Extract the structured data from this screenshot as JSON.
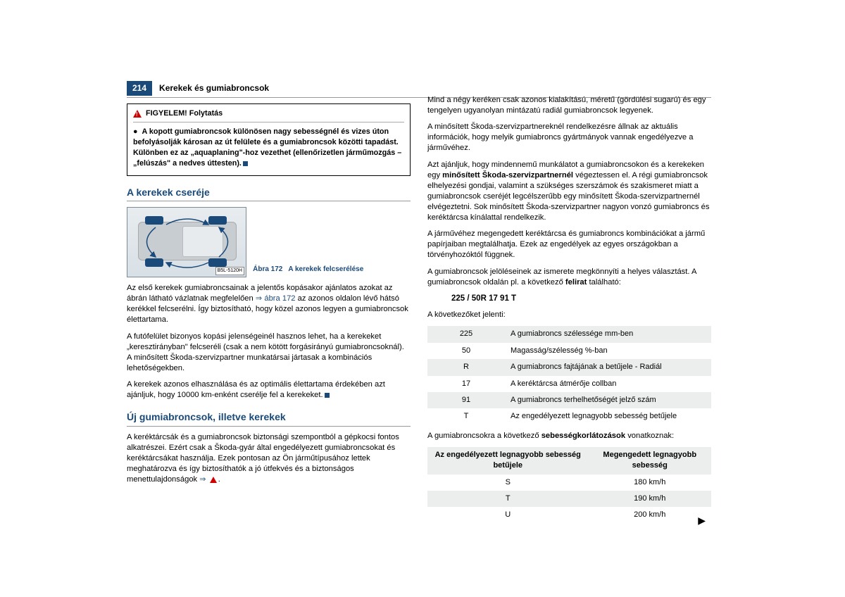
{
  "page_number": "214",
  "chapter": "Kerekek és gumiabroncsok",
  "warning": {
    "title": "FIGYELEM! Folytatás",
    "body": "A kopott gumiabroncsok különösen nagy sebességnél és vizes úton befolyásolják károsan az út felülete és a gumiabroncsok közötti tapadást. Különben ez az „aquaplaning\"-hoz vezethet (ellenőrizetlen járműmozgás – „felúszás\" a nedves úttesten)."
  },
  "section1": {
    "title": "A kerekek cseréje",
    "fig_label": "B5L-5120H",
    "fig_caption_prefix": "Ábra 172",
    "fig_caption": "A kerekek felcserélése",
    "p1a": "Az első kerekek gumiabroncsainak a jelentős kopásakor ajánlatos azokat az ábrán látható vázlatnak megfelelően ",
    "p1b": "ábra 172",
    "p1c": " az azonos oldalon lévő hátsó kerékkel felcserélni. Így biztosítható, hogy közel azonos legyen a gumiabroncsok élettartama.",
    "p2": "A futófelület bizonyos kopási jelenségeinél hasznos lehet, ha a kerekeket „keresztirányban\" felcseréli (csak a nem kötött forgásirányú gumiabroncsoknál). A minősített Škoda-szervizpartner munkatársai jártasak a kombinációs lehetőségekben.",
    "p3": "A kerekek azonos elhasználása és az optimális élettartama érdekében azt ajánljuk, hogy 10000 km-enként cserélje fel a kerekeket."
  },
  "section2": {
    "title": "Új gumiabroncsok, illetve kerekek",
    "p1": "A keréktárcsák és a gumiabroncsok biztonsági szempontból a gépkocsi fontos alkatrészei. Ezért csak a Škoda-gyár által engedélyezett gumiabroncsokat és keréktárcsákat használja. Ezek pontosan az Ön járműtípusához lettek meghatározva és így biztosíthatók a jó útfekvés és a biztonságos menettulajdonságok "
  },
  "right": {
    "p1": "Mind a négy keréken csak azonos kialakítású, méretű (gördülési sugarú) és egy tengelyen ugyanolyan mintázatú radiál gumiabroncsok legyenek.",
    "p2": "A minősített Škoda-szervizpartnereknél rendelkezésre állnak az aktuális információk, hogy melyik gumiabroncs gyártmányok vannak engedélyezve a járművéhez.",
    "p3a": "Azt ajánljuk, hogy mindennemű munkálatot a gumiabroncsokon és a kerekeken egy ",
    "p3b": "minősített Škoda-szervizpartnernél",
    "p3c": " végeztessen el. A régi gumiabroncsok elhelyezési gondjai, valamint a szükséges szerszámok és szakismeret miatt a gumiabroncsok cseréjét legcélszerűbb egy minősített Škoda-szervizpartnernél elvégeztetni. Sok minősített Škoda-szervizpartner nagyon vonzó gumiabroncs és keréktárcsa kínálattal rendelkezik.",
    "p4": "A járművéhez megengedett keréktárcsa és gumiabroncs kombinációkat a jármű papírjaiban megtalálhatja. Ezek az engedélyek az egyes országokban a törvényhozóktól függnek.",
    "p5a": "A gumiabroncsok jelöléseinek az ismerete megkönnyíti a helyes választást. A gumiabroncsok oldalán pl. a következő ",
    "p5b": "felirat",
    "p5c": " található:",
    "tirespec": "225 / 50R 17 91 T",
    "p6": "A következőket jelenti:",
    "table1": [
      [
        "225",
        "A gumiabroncs szélessége mm-ben"
      ],
      [
        "50",
        "Magasság/szélesség %-ban"
      ],
      [
        "R",
        "A gumiabroncs fajtájának a betűjele - Radiál"
      ],
      [
        "17",
        "A keréktárcsa átmérője collban"
      ],
      [
        "91",
        "A gumiabroncs terhelhetőségét jelző szám"
      ],
      [
        "T",
        "Az engedélyezett legnagyobb sebesség betűjele"
      ]
    ],
    "p7a": "A gumiabroncsokra a következő ",
    "p7b": "sebességkorlátozások",
    "p7c": " vonatkoznak:",
    "table2head": [
      "Az engedélyezett legnagyobb sebesség betűjele",
      "Megengedett legnagyobb sebesség"
    ],
    "table2": [
      [
        "S",
        "180 km/h"
      ],
      [
        "T",
        "190 km/h"
      ],
      [
        "U",
        "200 km/h"
      ]
    ]
  },
  "colors": {
    "accent": "#1a4a7a",
    "warn": "#d00000",
    "table_row": "#eceeee"
  }
}
